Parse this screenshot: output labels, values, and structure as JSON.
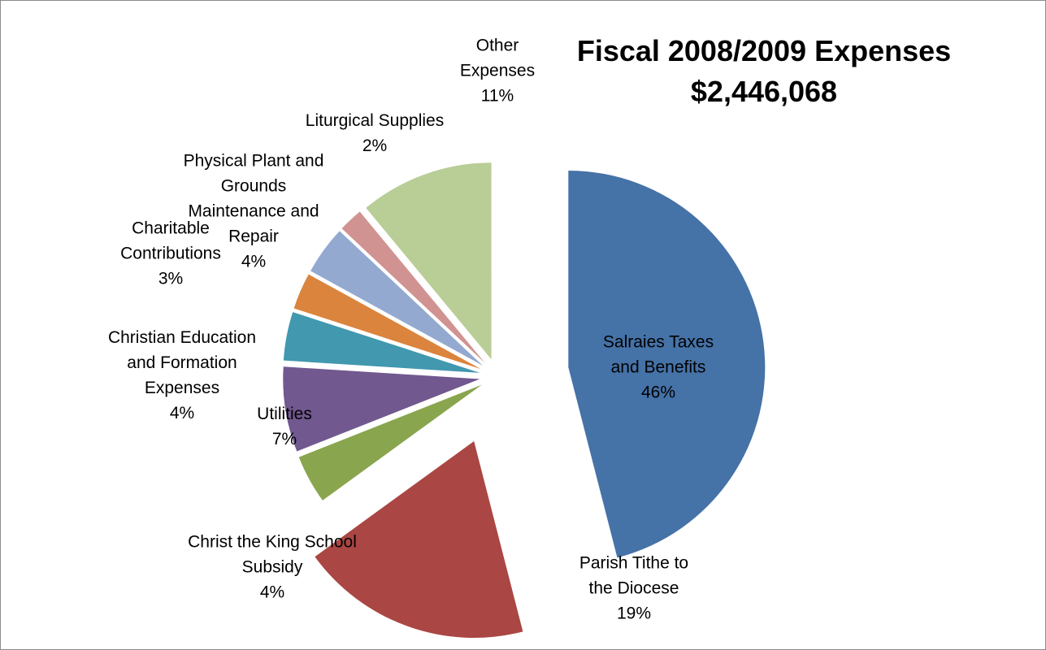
{
  "chart_data": {
    "type": "pie",
    "title": "Fiscal 2008/2009 Expenses",
    "subtitle": "$2,446,068",
    "exploded": true,
    "legend": "none",
    "slices": [
      {
        "label": "Salraies Taxes and Benefits",
        "label_lines": [
          "Salraies Taxes",
          "and Benefits"
        ],
        "percent_label": "46%",
        "value": 46,
        "color": "#4572A7"
      },
      {
        "label": "Parish Tithe to the Diocese",
        "label_lines": [
          "Parish Tithe to",
          "the Diocese"
        ],
        "percent_label": "19%",
        "value": 19,
        "color": "#AA4643"
      },
      {
        "label": "Christ the King School Subsidy",
        "label_lines": [
          "Christ the King School",
          "Subsidy"
        ],
        "percent_label": "4%",
        "value": 4,
        "color": "#89A54E"
      },
      {
        "label": "Utilities",
        "label_lines": [
          "Utilities"
        ],
        "percent_label": "7%",
        "value": 7,
        "color": "#71588F"
      },
      {
        "label": "Christian Education and Formation Expenses",
        "label_lines": [
          "Christian Education",
          "and Formation",
          "Expenses"
        ],
        "percent_label": "4%",
        "value": 4,
        "color": "#4198AF"
      },
      {
        "label": "Charitable Contributions",
        "label_lines": [
          "Charitable",
          "Contributions"
        ],
        "percent_label": "3%",
        "value": 3,
        "color": "#DB843D"
      },
      {
        "label": "Physical Plant and Grounds Maintenance and Repair",
        "label_lines": [
          "Physical Plant and",
          "Grounds",
          "Maintenance and",
          "Repair"
        ],
        "percent_label": "4%",
        "value": 4,
        "color": "#93A9D0"
      },
      {
        "label": "Liturgical Supplies",
        "label_lines": [
          "Liturgical Supplies"
        ],
        "percent_label": "2%",
        "value": 2,
        "color": "#D09392"
      },
      {
        "label": "Other Expenses",
        "label_lines": [
          "Other",
          "Expenses"
        ],
        "percent_label": "11%",
        "value": 11,
        "color": "#B9CD96"
      }
    ]
  }
}
